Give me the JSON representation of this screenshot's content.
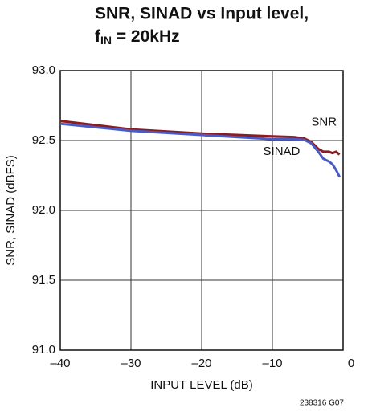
{
  "chart_data": {
    "type": "line",
    "title": "SNR, SINAD vs Input level,",
    "subtitle": {
      "symbol": "f",
      "subscript": "IN",
      "text": " = 20kHz"
    },
    "x_label": "INPUT LEVEL (dB)",
    "y_label": "SNR, SINAD (dBFS)",
    "note": "238316 G07",
    "xlim": [
      -40,
      0
    ],
    "xticks": [
      {
        "value": -40,
        "label": "–40"
      },
      {
        "value": -30,
        "label": "–30"
      },
      {
        "value": -20,
        "label": "–20"
      },
      {
        "value": -10,
        "label": "–10"
      },
      0
    ],
    "ylim": [
      91,
      93
    ],
    "yticks": [
      {
        "value": 91,
        "label": "91.0"
      },
      91.5,
      {
        "value": 92,
        "label": "92.0"
      },
      92.5,
      {
        "value": 93,
        "label": "93.0"
      }
    ],
    "grid": true,
    "series": [
      {
        "name": "SNR",
        "color": "#8b1c22",
        "x": [
          -40,
          -30,
          -20,
          -10,
          -7,
          -5.5,
          -4.5,
          -3.5,
          -2.8,
          -2,
          -1.5,
          -1,
          -0.5
        ],
        "values": [
          92.64,
          92.58,
          92.55,
          92.53,
          92.525,
          92.515,
          92.49,
          92.44,
          92.42,
          92.42,
          92.41,
          92.42,
          92.4
        ]
      },
      {
        "name": "SINAD",
        "color": "#4a5cc4",
        "x": [
          -40,
          -30,
          -20,
          -10,
          -7,
          -5.5,
          -4.5,
          -3.5,
          -2.8,
          -2,
          -1.5,
          -1,
          -0.5
        ],
        "values": [
          92.62,
          92.57,
          92.54,
          92.51,
          92.51,
          92.505,
          92.48,
          92.42,
          92.37,
          92.35,
          92.33,
          92.29,
          92.24
        ]
      }
    ]
  }
}
